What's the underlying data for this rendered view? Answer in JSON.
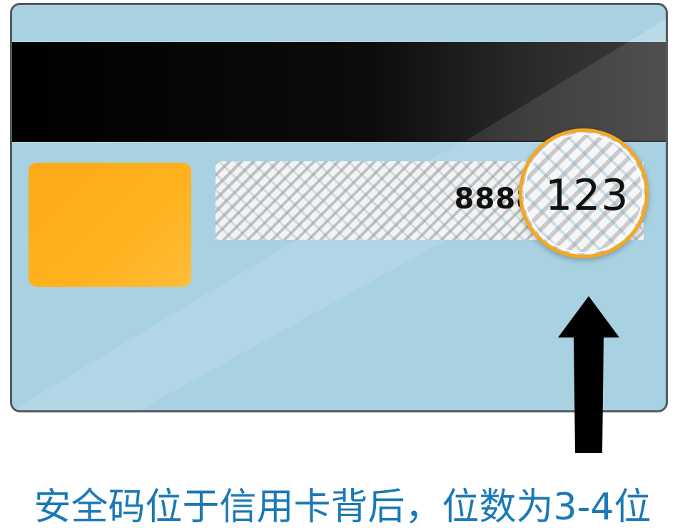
{
  "card": {
    "security_code_prefix": "8888",
    "security_code": "123"
  },
  "caption": {
    "text": "安全码位于信用卡背后，位数为3-4位"
  },
  "colors": {
    "card_background": "#a8d1e2",
    "card_border": "#555a5e",
    "magnetic_stripe": "#000000",
    "chip": "#ffae1d",
    "magnifier_ring": "#f5a623",
    "arrow": "#000000",
    "caption_text": "#1a79b6"
  },
  "icons": {
    "pointer": "up-arrow-icon",
    "magnifier": "magnifier-icon"
  }
}
